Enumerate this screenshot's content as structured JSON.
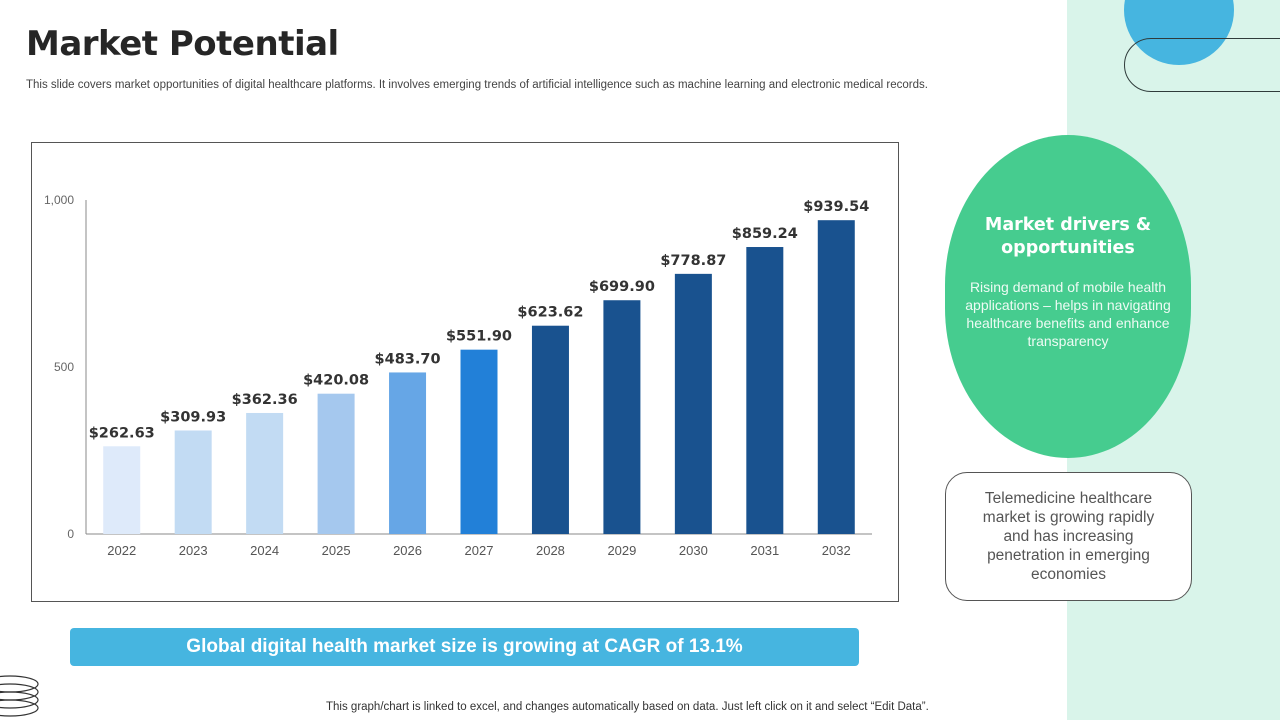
{
  "header": {
    "title": "Market Potential",
    "subtitle": "This slide covers market opportunities of digital healthcare platforms. It involves emerging trends of artificial intelligence such as machine learning and electronic medical records."
  },
  "chart_data": {
    "type": "bar",
    "title": "",
    "xlabel": "",
    "ylabel": "",
    "categories": [
      "2022",
      "2023",
      "2024",
      "2025",
      "2026",
      "2027",
      "2028",
      "2029",
      "2030",
      "2031",
      "2032"
    ],
    "values": [
      262.63,
      309.93,
      362.36,
      420.08,
      483.7,
      551.9,
      623.62,
      699.9,
      778.87,
      859.24,
      939.54
    ],
    "data_labels": [
      "$262.63",
      "$309.93",
      "$362.36",
      "$420.08",
      "$483.70",
      "$551.90",
      "$623.62",
      "$699.90",
      "$778.87",
      "$859.24",
      "$939.54"
    ],
    "bar_colors": [
      "#deeafa",
      "#c2dbf3",
      "#c2dbf3",
      "#a5c8ee",
      "#66a6e6",
      "#2280d8",
      "#19528f",
      "#19528f",
      "#19528f",
      "#19528f",
      "#19528f"
    ],
    "ylim": [
      0,
      1000
    ],
    "yticks": [
      0,
      500,
      1000
    ],
    "ytick_labels": [
      "0",
      "500",
      "1,000"
    ],
    "grid": false,
    "legend": "none"
  },
  "callout": {
    "cagr_text": "Global digital health market size is growing at CAGR of 13.1%"
  },
  "side": {
    "drivers_title": "Market drivers & opportunities",
    "drivers_text": "Rising demand of mobile health applications – helps in navigating healthcare benefits and enhance transparency",
    "telemedicine_text": "Telemedicine healthcare market is growing rapidly and has increasing penetration in emerging economies"
  },
  "footer": {
    "note": "This graph/chart is linked to excel, and changes automatically based on data. Just left click on it and select “Edit Data”."
  },
  "colors": {
    "accent_blue": "#46b5e0",
    "accent_green": "#46cc8f",
    "panel_bg": "#d9f4ea"
  }
}
